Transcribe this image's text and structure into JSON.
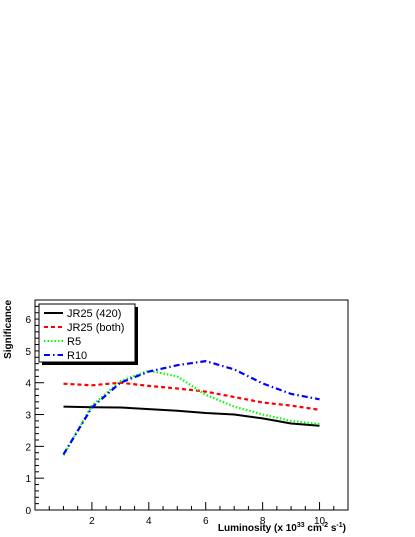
{
  "chart_data": {
    "type": "line",
    "xlabel_main": "Luminosity (x 10",
    "xlabel_exp1": "33",
    "xlabel_unit": " cm",
    "xlabel_exp2": "-2",
    "xlabel_tail": " s",
    "xlabel_exp3": "-1",
    "xlabel_close": ")",
    "ylabel": "Significance",
    "xlim": [
      0,
      11
    ],
    "ylim": [
      0,
      6.6
    ],
    "x_ticks": [
      "2",
      "4",
      "6",
      "8",
      "10"
    ],
    "y_ticks": [
      "0",
      "1",
      "2",
      "3",
      "4",
      "5",
      "6"
    ],
    "legend_position": "top-left",
    "series": [
      {
        "name": "JR25 (420)",
        "color": "#000000",
        "style": "solid",
        "x": [
          1,
          2,
          3,
          4,
          5,
          6,
          7,
          8,
          9,
          10
        ],
        "y": [
          3.25,
          3.23,
          3.22,
          3.17,
          3.12,
          3.05,
          3.0,
          2.88,
          2.72,
          2.65
        ]
      },
      {
        "name": "JR25 (both)",
        "color": "#ff0000",
        "style": "dashed",
        "x": [
          1,
          2,
          3,
          4,
          5,
          6,
          7,
          8,
          9,
          10
        ],
        "y": [
          3.97,
          3.92,
          4.0,
          3.9,
          3.82,
          3.72,
          3.55,
          3.38,
          3.28,
          3.15
        ]
      },
      {
        "name": "R5",
        "color": "#00ff00",
        "style": "dotted",
        "x": [
          1,
          2,
          3,
          4,
          5,
          6,
          7,
          8,
          9,
          10
        ],
        "y": [
          1.72,
          3.28,
          4.05,
          4.38,
          4.2,
          3.62,
          3.25,
          3.0,
          2.8,
          2.7
        ]
      },
      {
        "name": "R10",
        "color": "#0000ff",
        "style": "dashdot",
        "x": [
          1,
          2,
          3,
          4,
          5,
          6,
          7,
          8,
          9,
          10
        ],
        "y": [
          1.75,
          3.22,
          4.0,
          4.35,
          4.55,
          4.68,
          4.42,
          3.98,
          3.65,
          3.48
        ]
      }
    ]
  }
}
